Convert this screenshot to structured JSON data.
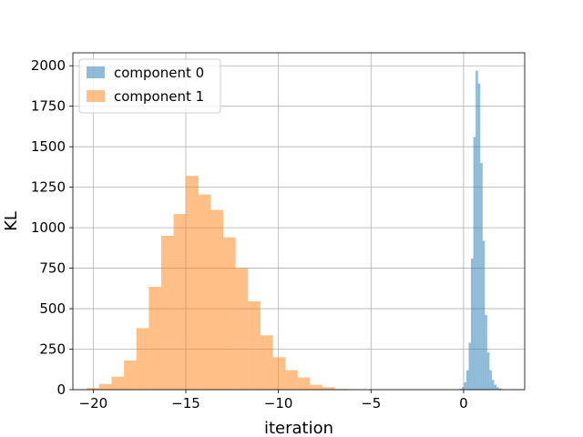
{
  "chart_data": {
    "type": "bar",
    "title": "",
    "xlabel": "iteration",
    "ylabel": "KL",
    "xlim": [
      -21.1,
      3.3
    ],
    "ylim": [
      0,
      2080
    ],
    "grid": true,
    "legend_position": "top-left",
    "x_ticks": [
      -20,
      -15,
      -10,
      -5,
      0
    ],
    "x_tick_labels": [
      "−20",
      "−15",
      "−10",
      "−5",
      "0"
    ],
    "y_ticks": [
      0,
      250,
      500,
      750,
      1000,
      1250,
      1500,
      1750,
      2000
    ],
    "y_tick_labels": [
      "0",
      "250",
      "500",
      "750",
      "1000",
      "1250",
      "1500",
      "1750",
      "2000"
    ],
    "series": [
      {
        "name": "component 0",
        "color": "#1f77b4",
        "opacity": 0.5,
        "bin_start": -0.35,
        "bin_width": 0.125,
        "counts": [
          2,
          5,
          15,
          45,
          120,
          290,
          810,
          1560,
          1970,
          1890,
          1400,
          920,
          460,
          230,
          120,
          60,
          30,
          15,
          8,
          4
        ]
      },
      {
        "name": "component 1",
        "color": "#ff7f0e",
        "opacity": 0.5,
        "bin_start": -20.35,
        "bin_width": 0.67,
        "counts": [
          10,
          35,
          80,
          180,
          380,
          635,
          950,
          1085,
          1320,
          1205,
          1110,
          940,
          750,
          545,
          335,
          200,
          120,
          75,
          30,
          15,
          5,
          2
        ]
      }
    ]
  }
}
